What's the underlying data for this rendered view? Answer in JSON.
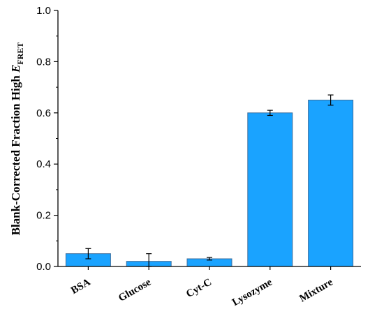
{
  "chart_data": {
    "type": "bar",
    "categories": [
      "BSA",
      "Glucose",
      "Cyt-C",
      "Lysozyme",
      "Mixture"
    ],
    "values": [
      0.05,
      0.02,
      0.03,
      0.6,
      0.65
    ],
    "errors": [
      0.02,
      0.03,
      0.005,
      0.01,
      0.02
    ],
    "ylabel_main": "Blank-Corrected Fraction High ",
    "ylabel_var": "E",
    "ylabel_sub": "FRET",
    "ylim": [
      0,
      1.0
    ],
    "yticks": [
      0.0,
      0.2,
      0.4,
      0.6,
      0.8,
      1.0
    ],
    "yticklabels": [
      "0.0",
      "0.2",
      "0.4",
      "0.6",
      "0.8",
      "1.0"
    ],
    "grid": false,
    "bar_color": "#1aa3ff",
    "bar_edge_color": "#3d6f9e"
  }
}
